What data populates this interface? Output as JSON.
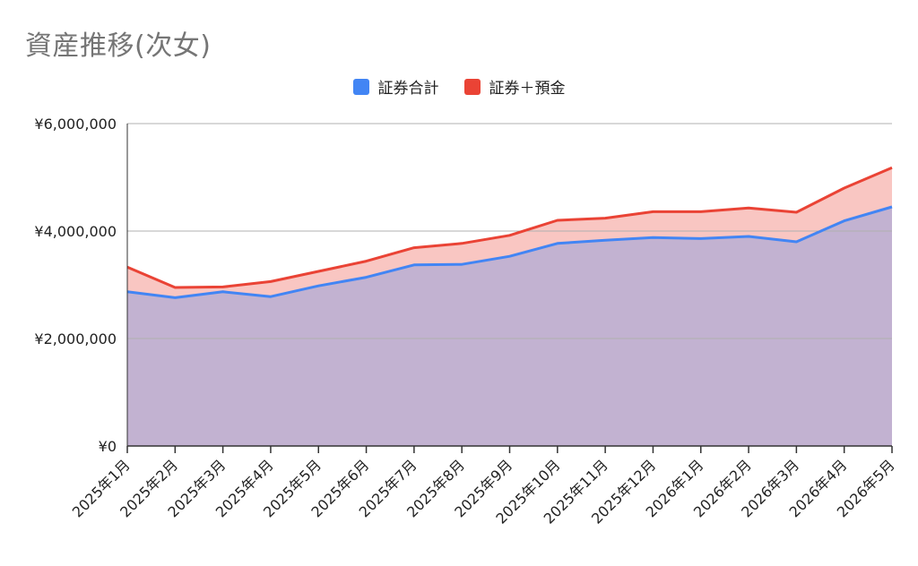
{
  "chart_data": {
    "type": "area",
    "title": "資産推移(次女)",
    "categories": [
      "2025年1月",
      "2025年2月",
      "2025年3月",
      "2025年4月",
      "2025年5月",
      "2025年6月",
      "2025年7月",
      "2025年8月",
      "2025年9月",
      "2025年10月",
      "2025年11月",
      "2025年12月",
      "2026年1月",
      "2026年2月",
      "2026年3月",
      "2026年4月",
      "2026年5月"
    ],
    "series": [
      {
        "name": "証券合計",
        "color": "#4285f4",
        "values": [
          2870000,
          2760000,
          2870000,
          2780000,
          2980000,
          3140000,
          3370000,
          3380000,
          3530000,
          3770000,
          3830000,
          3880000,
          3860000,
          3900000,
          3800000,
          4190000,
          4450000
        ]
      },
      {
        "name": "証券＋預金",
        "color": "#ea4335",
        "values": [
          3330000,
          2950000,
          2960000,
          3060000,
          3250000,
          3440000,
          3690000,
          3770000,
          3920000,
          4200000,
          4240000,
          4360000,
          4360000,
          4430000,
          4350000,
          4800000,
          5180000
        ]
      }
    ],
    "y_ticks": [
      "¥0",
      "¥2,000,000",
      "¥4,000,000",
      "¥6,000,000"
    ],
    "y_tick_values": [
      0,
      2000000,
      4000000,
      6000000
    ],
    "ylim": [
      0,
      6000000
    ],
    "legend_position": "top",
    "grid": true
  }
}
